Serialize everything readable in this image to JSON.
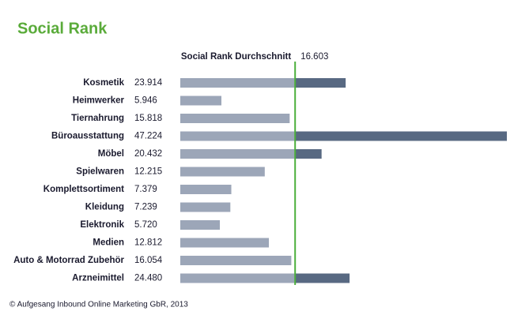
{
  "chart_data": {
    "type": "bar",
    "orientation": "horizontal",
    "title": "Social Rank",
    "categories": [
      "Kosmetik",
      "Heimwerker",
      "Tiernahrung",
      "Büroausstattung",
      "Möbel",
      "Spielwaren",
      "Komplettsortiment",
      "Kleidung",
      "Elektronik",
      "Medien",
      "Auto & Motorrad Zubehör",
      "Arzneimittel"
    ],
    "values": [
      23.914,
      5.946,
      15.818,
      47.224,
      20.432,
      12.215,
      7.379,
      7.239,
      5.72,
      12.812,
      16.054,
      24.48
    ],
    "value_labels": [
      "23.914",
      "5.946",
      "15.818",
      "47.224",
      "20.432",
      "12.215",
      "7.379",
      "7.239",
      "5.720",
      "12.812",
      "16.054",
      "24.480"
    ],
    "color_below": "#9ca6b8",
    "color_above": "#586982",
    "reference_line": {
      "label": "Social Rank Durchschnitt",
      "value": 16.603,
      "color": "#4caf3c"
    },
    "title_color": "#5aab3a",
    "source": "© Aufgesang Inbound Online Marketing GbR, 2013"
  }
}
